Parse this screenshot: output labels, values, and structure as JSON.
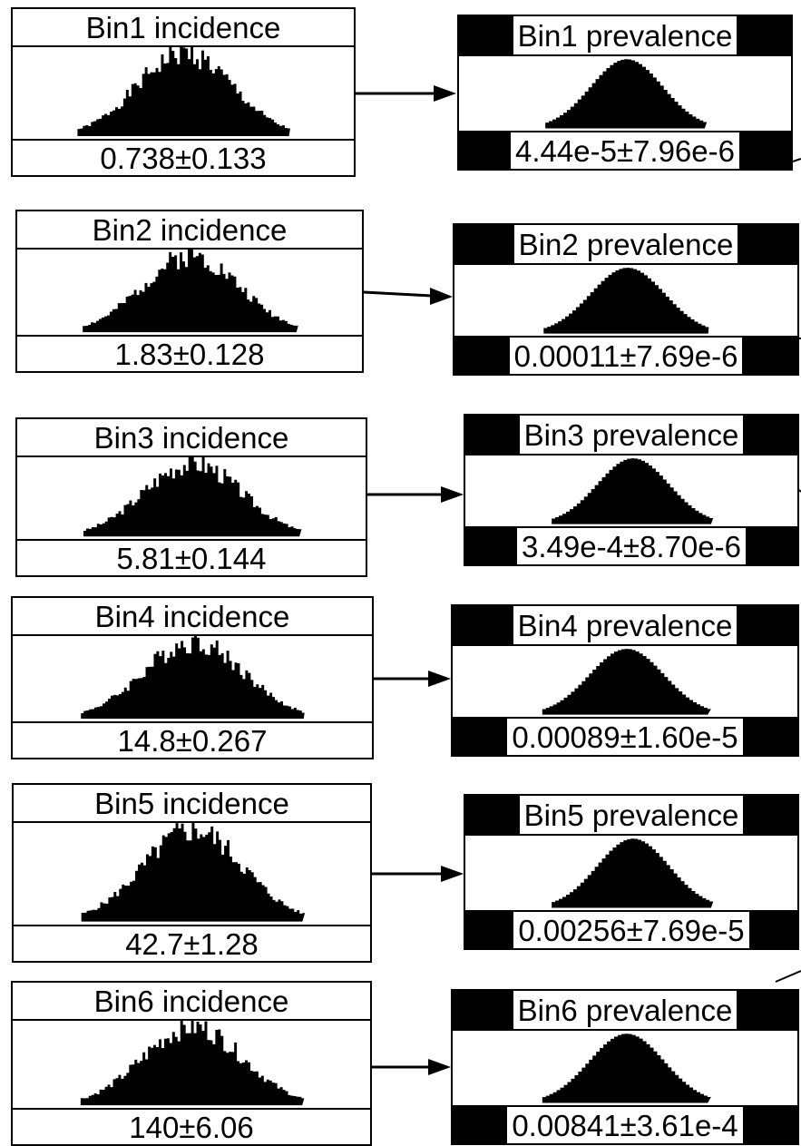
{
  "bins": [
    {
      "incidence": {
        "title": "Bin1  incidence",
        "value": "0.738±0.133"
      },
      "prevalence": {
        "title": "Bin1  prevalence",
        "value": "4.44e-5±7.96e-6"
      }
    },
    {
      "incidence": {
        "title": "Bin2  incidence",
        "value": "1.83±0.128"
      },
      "prevalence": {
        "title": "Bin2  prevalence",
        "value": "0.00011±7.69e-6"
      }
    },
    {
      "incidence": {
        "title": "Bin3  incidence",
        "value": "5.81±0.144"
      },
      "prevalence": {
        "title": "Bin3  prevalence",
        "value": "3.49e-4±8.70e-6"
      }
    },
    {
      "incidence": {
        "title": "Bin4  incidence",
        "value": "14.8±0.267"
      },
      "prevalence": {
        "title": "Bin4  prevalence",
        "value": "0.00089±1.60e-5"
      }
    },
    {
      "incidence": {
        "title": "Bin5  incidence",
        "value": "42.7±1.28"
      },
      "prevalence": {
        "title": "Bin5  prevalence",
        "value": "0.00256±7.69e-5"
      }
    },
    {
      "incidence": {
        "title": "Bin6  incidence",
        "value": "140±6.06"
      },
      "prevalence": {
        "title": "Bin6  prevalence",
        "value": "0.00841±3.61e-4"
      }
    }
  ],
  "colors": {
    "line": "#000000",
    "background": "#ffffff"
  }
}
